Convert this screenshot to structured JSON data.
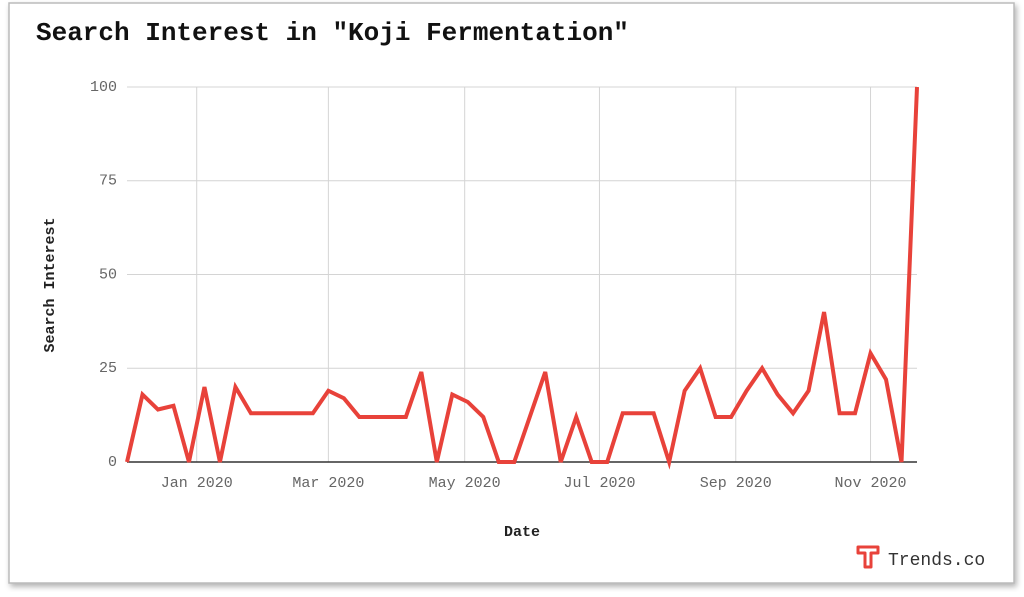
{
  "chart_data": {
    "type": "line",
    "title": "Search Interest in \"Koji Fermentation\"",
    "y_label": "Search Interest",
    "x_label": "Date",
    "series": [
      {
        "name": "Koji Fermentation",
        "color": "#e8423a",
        "values": [
          0,
          18,
          14,
          15,
          0,
          20,
          0,
          20,
          13,
          13,
          13,
          13,
          13,
          19,
          17,
          12,
          12,
          12,
          12,
          24,
          0,
          18,
          16,
          12,
          0,
          0,
          12,
          24,
          0,
          12,
          0,
          0,
          13,
          13,
          13,
          0,
          19,
          25,
          12,
          12,
          19,
          25,
          18,
          13,
          19,
          40,
          13,
          13,
          29,
          22,
          0,
          100
        ]
      }
    ],
    "xlim": [
      0,
      51
    ],
    "xticks": [
      {
        "value": 4.5,
        "label": "Jan 2020"
      },
      {
        "value": 13,
        "label": "Mar 2020"
      },
      {
        "value": 21.8,
        "label": "May 2020"
      },
      {
        "value": 30.5,
        "label": "Jul 2020"
      },
      {
        "value": 39.3,
        "label": "Sep 2020"
      },
      {
        "value": 48,
        "label": "Nov 2020"
      }
    ],
    "ylim": [
      0,
      100
    ],
    "yticks": [
      0,
      25,
      50,
      75,
      100
    ],
    "grid": true,
    "brand": "Trends.co"
  }
}
